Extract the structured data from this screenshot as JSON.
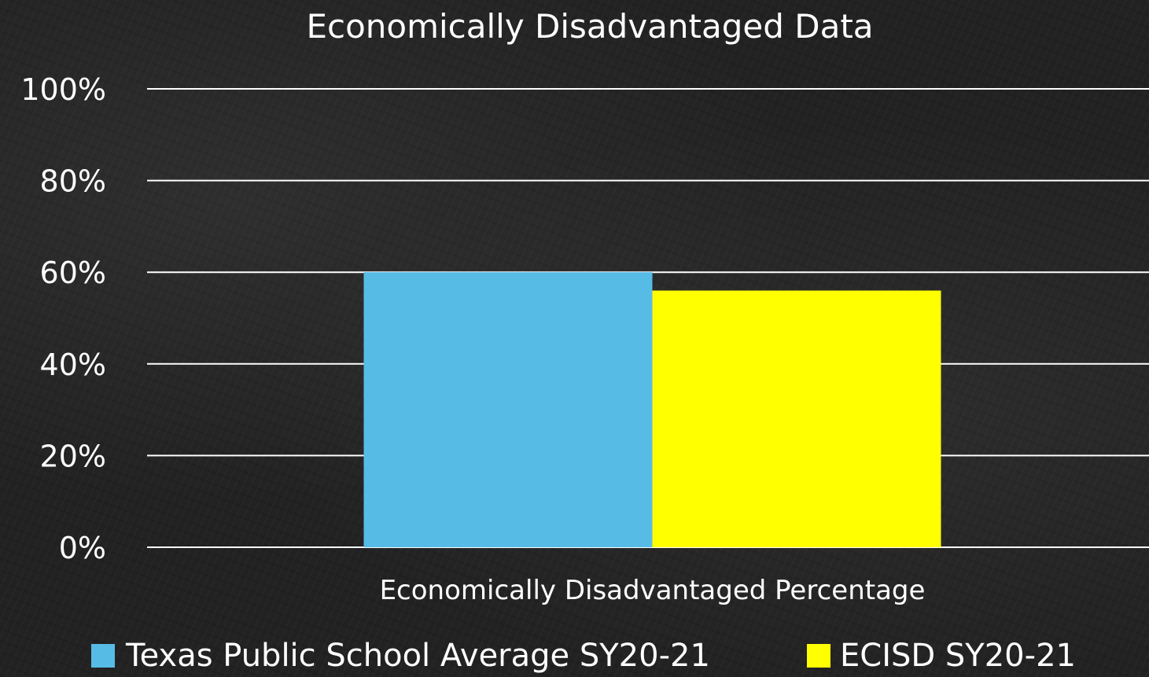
{
  "chart_data": {
    "type": "bar",
    "title": "Economically Disadvantaged Data",
    "categories": [
      "Economically Disadvantaged Percentage"
    ],
    "series": [
      {
        "name": "Texas Public School Average SY20-21",
        "values": [
          60
        ],
        "color": "#56BCE6"
      },
      {
        "name": "ECISD SY20-21",
        "values": [
          56
        ],
        "color": "#FFFF00"
      }
    ],
    "yticks": [
      "0%",
      "20%",
      "40%",
      "60%",
      "80%",
      "100%"
    ],
    "ylim": [
      0,
      100
    ],
    "grid": true,
    "legend": "bottom",
    "background": "#222222",
    "gridline_color": "#FFFFFF"
  }
}
